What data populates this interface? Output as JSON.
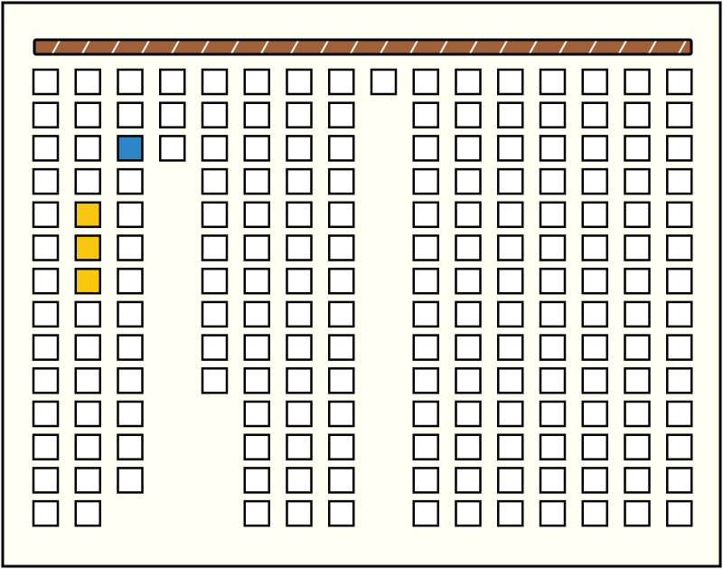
{
  "board": {
    "cells": [
      [
        "#ffffff",
        "#ffffff",
        "#ffffff",
        "#ffffff",
        "#ffffff",
        "#ffffff",
        "#ffffff",
        "#ffffff",
        "#ffffff",
        "#ffffff",
        "#ffffff",
        "#ffffff",
        "#ffffff",
        "#ffffff",
        "#ffffff",
        "#ffffff"
      ],
      [
        "#ffffff",
        "#ffffff",
        "#ffffff",
        "#ffffff",
        "#ffffff",
        "#ffffff",
        "#ffffff",
        "#ffffff",
        null,
        "#ffffff",
        "#ffffff",
        "#ffffff",
        "#ffffff",
        "#ffffff",
        "#ffffff",
        "#ffffff"
      ],
      [
        "#ffffff",
        "#ffffff",
        "#2e86c8",
        "#ffffff",
        "#ffffff",
        "#ffffff",
        "#ffffff",
        "#ffffff",
        null,
        "#ffffff",
        "#ffffff",
        "#ffffff",
        "#ffffff",
        "#ffffff",
        "#ffffff",
        "#ffffff"
      ],
      [
        "#ffffff",
        "#ffffff",
        "#ffffff",
        null,
        "#ffffff",
        "#ffffff",
        "#ffffff",
        "#ffffff",
        null,
        "#ffffff",
        "#ffffff",
        "#ffffff",
        "#ffffff",
        "#ffffff",
        "#ffffff",
        "#ffffff"
      ],
      [
        "#ffffff",
        "#f9c80e",
        "#ffffff",
        null,
        "#ffffff",
        "#ffffff",
        "#ffffff",
        "#ffffff",
        null,
        "#ffffff",
        "#ffffff",
        "#ffffff",
        "#ffffff",
        "#ffffff",
        "#ffffff",
        "#ffffff"
      ],
      [
        "#ffffff",
        "#f9c80e",
        "#ffffff",
        null,
        "#ffffff",
        "#ffffff",
        "#ffffff",
        "#ffffff",
        null,
        "#ffffff",
        "#ffffff",
        "#ffffff",
        "#ffffff",
        "#ffffff",
        "#ffffff",
        "#ffffff"
      ],
      [
        "#ffffff",
        "#f9c80e",
        "#ffffff",
        null,
        "#ffffff",
        "#ffffff",
        "#ffffff",
        "#ffffff",
        null,
        "#ffffff",
        "#ffffff",
        "#ffffff",
        "#ffffff",
        "#ffffff",
        "#ffffff",
        "#ffffff"
      ],
      [
        "#ffffff",
        "#ffffff",
        "#ffffff",
        null,
        "#ffffff",
        "#ffffff",
        "#ffffff",
        "#ffffff",
        null,
        "#ffffff",
        "#ffffff",
        "#ffffff",
        "#ffffff",
        "#ffffff",
        "#ffffff",
        "#ffffff"
      ],
      [
        "#ffffff",
        "#ffffff",
        "#ffffff",
        null,
        "#ffffff",
        "#ffffff",
        "#ffffff",
        "#ffffff",
        null,
        "#ffffff",
        "#ffffff",
        "#ffffff",
        "#ffffff",
        "#ffffff",
        "#ffffff",
        "#ffffff"
      ],
      [
        "#ffffff",
        "#ffffff",
        "#ffffff",
        null,
        "#ffffff",
        "#ffffff",
        "#ffffff",
        "#ffffff",
        null,
        "#ffffff",
        "#ffffff",
        "#ffffff",
        "#ffffff",
        "#ffffff",
        "#ffffff",
        "#ffffff"
      ],
      [
        "#ffffff",
        "#ffffff",
        "#ffffff",
        null,
        null,
        "#ffffff",
        "#ffffff",
        "#ffffff",
        null,
        "#ffffff",
        "#ffffff",
        "#ffffff",
        "#ffffff",
        "#ffffff",
        "#ffffff",
        "#ffffff"
      ],
      [
        "#ffffff",
        "#ffffff",
        "#ffffff",
        null,
        null,
        "#ffffff",
        "#ffffff",
        "#ffffff",
        null,
        "#ffffff",
        "#ffffff",
        "#ffffff",
        "#ffffff",
        "#ffffff",
        "#ffffff",
        "#ffffff"
      ],
      [
        "#ffffff",
        "#ffffff",
        "#ffffff",
        null,
        null,
        "#ffffff",
        "#ffffff",
        "#ffffff",
        null,
        "#ffffff",
        "#ffffff",
        "#ffffff",
        "#ffffff",
        "#ffffff",
        "#ffffff",
        "#ffffff"
      ],
      [
        "#ffffff",
        "#ffffff",
        null,
        null,
        null,
        "#ffffff",
        "#ffffff",
        "#ffffff",
        null,
        "#ffffff",
        "#ffffff",
        "#ffffff",
        "#ffffff",
        "#ffffff",
        "#ffffff",
        "#ffffff"
      ]
    ]
  }
}
